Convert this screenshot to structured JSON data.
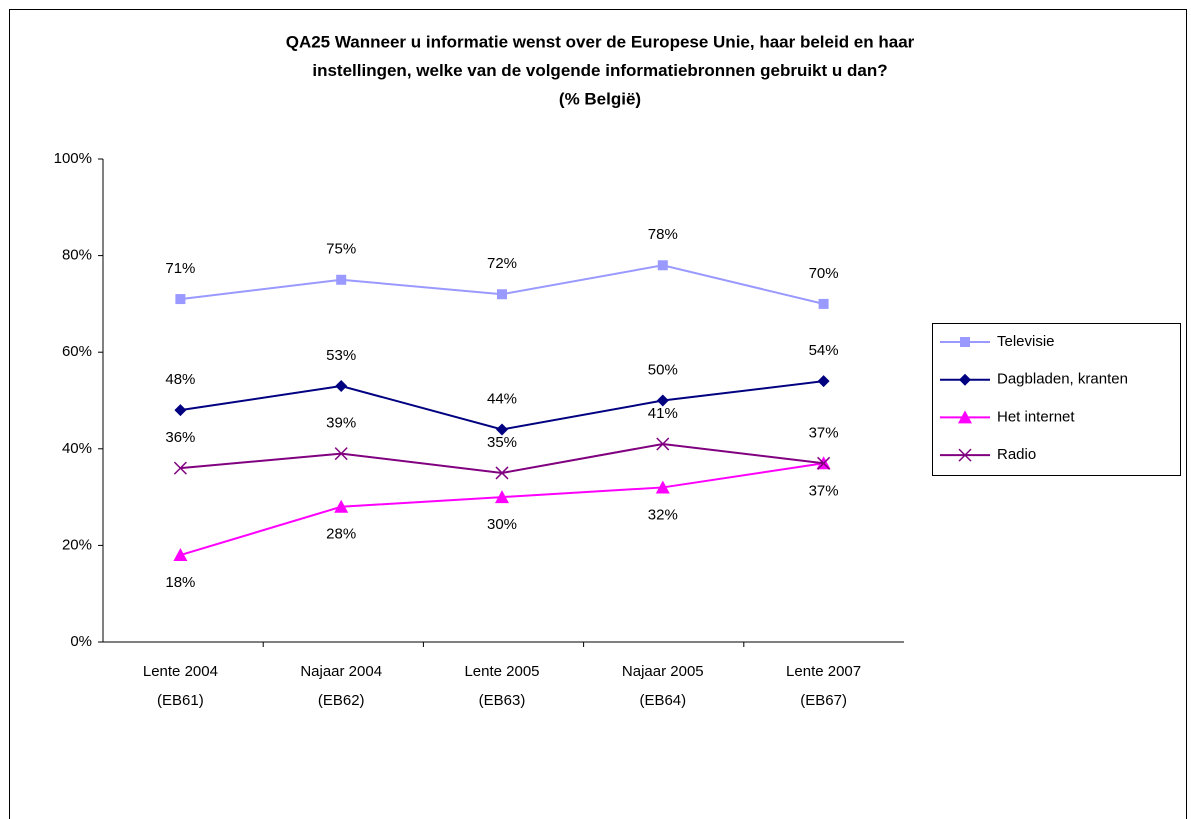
{
  "chart_data": {
    "type": "line",
    "title": [
      "QA25 Wanneer u informatie wenst over de Europese Unie, haar beleid en haar",
      "instellingen, welke van de volgende informatiebronnen gebruikt u dan?",
      "(% België)"
    ],
    "categories": [
      [
        "Lente 2004",
        "(EB61)"
      ],
      [
        "Najaar 2004",
        "(EB62)"
      ],
      [
        "Lente 2005",
        "(EB63)"
      ],
      [
        "Najaar 2005",
        "(EB64)"
      ],
      [
        "Lente 2007",
        "(EB67)"
      ]
    ],
    "ylim": [
      0,
      100
    ],
    "yticks": [
      {
        "value": 0,
        "label": "0%"
      },
      {
        "value": 20,
        "label": "20%"
      },
      {
        "value": 40,
        "label": "40%"
      },
      {
        "value": 60,
        "label": "60%"
      },
      {
        "value": 80,
        "label": "80%"
      },
      {
        "value": 100,
        "label": "100%"
      }
    ],
    "legend": "right",
    "series": [
      {
        "name": "Televisie",
        "color": "#9999ff",
        "marker": "square",
        "values": [
          71,
          75,
          72,
          78,
          70
        ],
        "value_labels": [
          "71%",
          "75%",
          "72%",
          "78%",
          "70%"
        ]
      },
      {
        "name": "Dagbladen, kranten",
        "color": "#000080",
        "marker": "diamond",
        "values": [
          48,
          53,
          44,
          50,
          54
        ],
        "value_labels": [
          "48%",
          "53%",
          "44%",
          "50%",
          "54%"
        ]
      },
      {
        "name": "Het internet",
        "color": "#ff00ff",
        "marker": "triangle",
        "values": [
          18,
          28,
          30,
          32,
          37
        ],
        "value_labels": [
          "18%",
          "28%",
          "30%",
          "32%",
          "37%"
        ]
      },
      {
        "name": "Radio",
        "color": "#800080",
        "marker": "x",
        "values": [
          36,
          39,
          35,
          41,
          37
        ],
        "value_labels": [
          "36%",
          "39%",
          "35%",
          "41%",
          "37%"
        ]
      }
    ]
  }
}
